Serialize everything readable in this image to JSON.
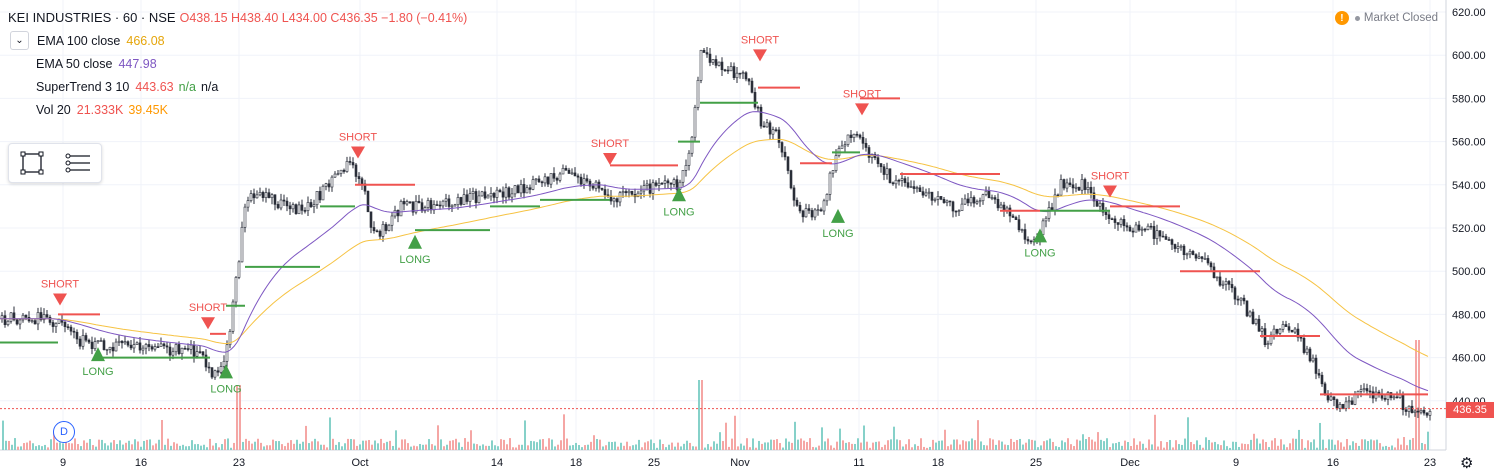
{
  "header": {
    "symbol": "KEI INDUSTRIES · 60 · NSE",
    "ohlc": "O438.15 H438.40 L434.00 C436.35 −1.80 (−0.41%)",
    "collapse_icon": "chevron-down-icon"
  },
  "legend": {
    "ema100_name": "EMA 100 close",
    "ema100_value": "466.08",
    "ema50_name": "EMA 50 close",
    "ema50_value": "447.98",
    "st_name": "SuperTrend 3 10",
    "st_value": "443.63",
    "st_na1": "n/a",
    "st_na2": "n/a",
    "vol_name": "Vol 20",
    "vol_value1": "21.333K",
    "vol_value2": "39.45K"
  },
  "status": {
    "text": "Market Closed",
    "warning_icon": "!"
  },
  "toolbar": {
    "rect_tool": "rectangle-tool-icon",
    "lines_tool": "horizontal-lines-tool-icon"
  },
  "current_price": "436.35",
  "d_button": "D",
  "colors": {
    "up": "#26a69a",
    "down": "#ef5350",
    "candle_body": "#2a2e39",
    "ema100": "#f6c343",
    "ema50": "#7e57c2",
    "st_up": "#43a047",
    "st_down": "#ef5350",
    "legend_ema100": "#e5a50a",
    "legend_ema50": "#7e57c2",
    "legend_st": "#ef5350",
    "legend_st_na": "#43a047",
    "legend_vol1": "#ef5350",
    "legend_vol2": "#ff9800"
  },
  "chart_data": {
    "type": "candlestick",
    "price_axis": {
      "ticks": [
        "620.00",
        "600.00",
        "580.00",
        "560.00",
        "540.00",
        "520.00",
        "500.00",
        "480.00",
        "460.00",
        "440.00"
      ],
      "ylim": [
        420,
        625
      ]
    },
    "time_axis": {
      "labels": [
        "9",
        "16",
        "23",
        "Oct",
        "14",
        "18",
        "25",
        "Nov",
        "11",
        "18",
        "25",
        "Dec",
        "9",
        "16",
        "23"
      ]
    },
    "signals": [
      {
        "type": "SHORT",
        "date": "6",
        "price": 486
      },
      {
        "type": "LONG",
        "date": "12",
        "price": 463
      },
      {
        "type": "SHORT",
        "date": "20",
        "price": 475
      },
      {
        "type": "LONG",
        "date": "21",
        "price": 455
      },
      {
        "type": "SHORT",
        "date": "30",
        "price": 554
      },
      {
        "type": "LONG",
        "date": "3",
        "price": 515
      },
      {
        "type": "SHORT",
        "date": "21",
        "price": 551
      },
      {
        "type": "LONG",
        "date": "27",
        "price": 537
      },
      {
        "type": "SHORT",
        "date": "4",
        "price": 599
      },
      {
        "type": "LONG",
        "date": "8",
        "price": 527
      },
      {
        "type": "SHORT",
        "date": "12",
        "price": 574
      },
      {
        "type": "LONG",
        "date": "25",
        "price": 518
      },
      {
        "type": "SHORT",
        "date": "28",
        "price": 536
      }
    ]
  }
}
